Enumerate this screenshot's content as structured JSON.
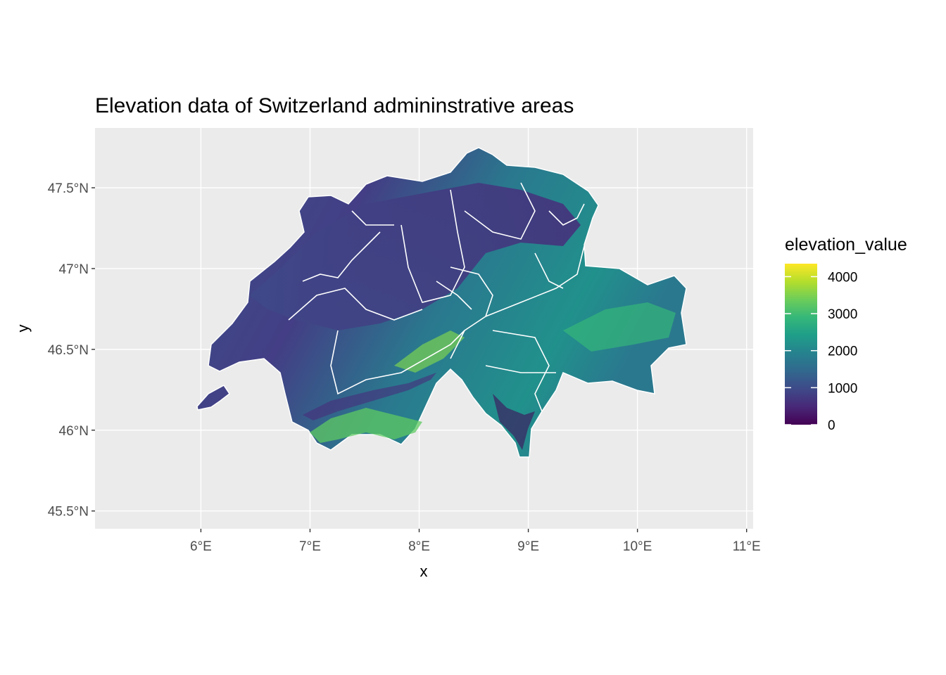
{
  "title": "Elevation data of Switzerland admininstrative areas",
  "x_axis": {
    "title": "x",
    "ticks": [
      "6°E",
      "7°E",
      "8°E",
      "9°E",
      "10°E",
      "11°E"
    ],
    "values": [
      6,
      7,
      8,
      9,
      10,
      11
    ],
    "range": [
      5.03,
      11.06
    ]
  },
  "y_axis": {
    "title": "y",
    "ticks": [
      "45.5°N",
      "46°N",
      "46.5°N",
      "47°N",
      "47.5°N"
    ],
    "values": [
      45.5,
      46,
      46.5,
      47,
      47.5
    ],
    "range": [
      45.39,
      47.87
    ]
  },
  "legend": {
    "title": "elevation_value",
    "labels": [
      "4000",
      "3000",
      "2000",
      "1000",
      "0"
    ],
    "values": [
      4000,
      3000,
      2000,
      1000,
      0
    ],
    "range": [
      0,
      4350
    ],
    "palette": [
      "#440154",
      "#482878",
      "#3e4a89",
      "#31688e",
      "#26828e",
      "#1f9e89",
      "#35b779",
      "#6dcd59",
      "#b4de2c",
      "#fde725"
    ]
  },
  "colors": {
    "panel_background": "#ebebeb",
    "grid": "#ffffff",
    "boundary": "#ffffff"
  }
}
